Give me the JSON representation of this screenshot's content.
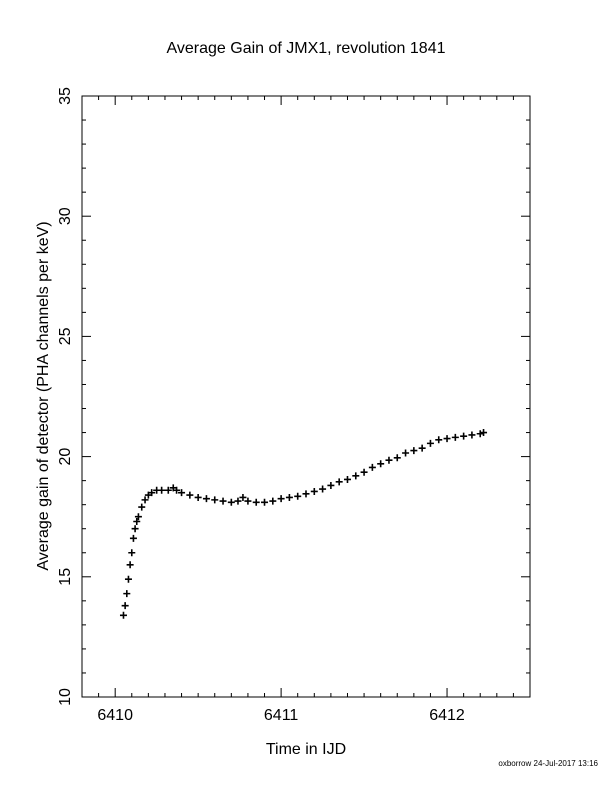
{
  "chart_data": {
    "type": "scatter",
    "title": "Average Gain of JMX1, revolution 1841",
    "xlabel": "Time in IJD",
    "ylabel": "Average gain of detector (PHA channels per keV)",
    "xlim": [
      6409.8,
      6412.5
    ],
    "ylim": [
      10,
      35
    ],
    "xticks": [
      6410,
      6411,
      6412
    ],
    "yticks": [
      10,
      15,
      20,
      25,
      30,
      35
    ],
    "marker": "plus",
    "grid": false,
    "series": [
      {
        "x": [
          6410.05,
          6410.06,
          6410.07,
          6410.08,
          6410.09,
          6410.1,
          6410.11,
          6410.12,
          6410.13,
          6410.14,
          6410.16,
          6410.18,
          6410.2,
          6410.22,
          6410.25,
          6410.28,
          6410.32,
          6410.35,
          6410.37,
          6410.4,
          6410.45,
          6410.5,
          6410.55,
          6410.6,
          6410.65,
          6410.7,
          6410.74,
          6410.77,
          6410.8,
          6410.85,
          6410.9,
          6410.95,
          6411.0,
          6411.05,
          6411.1,
          6411.15,
          6411.2,
          6411.25,
          6411.3,
          6411.35,
          6411.4,
          6411.45,
          6411.5,
          6411.55,
          6411.6,
          6411.65,
          6411.7,
          6411.75,
          6411.8,
          6411.85,
          6411.9,
          6411.95,
          6412.0,
          6412.05,
          6412.1,
          6412.15,
          6412.2,
          6412.22
        ],
        "y": [
          13.4,
          13.8,
          14.3,
          14.9,
          15.5,
          16.0,
          16.6,
          17.0,
          17.3,
          17.5,
          17.9,
          18.2,
          18.4,
          18.5,
          18.6,
          18.6,
          18.6,
          18.7,
          18.6,
          18.5,
          18.4,
          18.3,
          18.25,
          18.2,
          18.15,
          18.1,
          18.15,
          18.3,
          18.15,
          18.1,
          18.1,
          18.15,
          18.25,
          18.3,
          18.35,
          18.45,
          18.55,
          18.65,
          18.8,
          18.95,
          19.05,
          19.2,
          19.35,
          19.55,
          19.7,
          19.85,
          19.95,
          20.15,
          20.25,
          20.35,
          20.55,
          20.7,
          20.75,
          20.8,
          20.85,
          20.9,
          20.95,
          21.0
        ]
      }
    ]
  },
  "footer": "oxborrow 24-Jul-2017 13:16"
}
